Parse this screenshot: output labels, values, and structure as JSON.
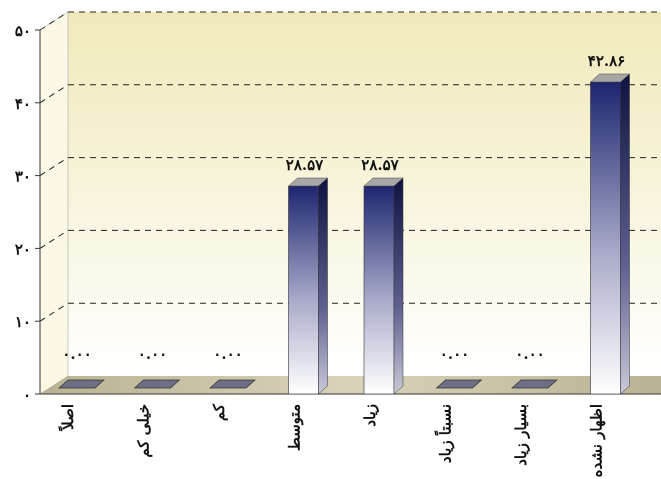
{
  "chart_data": {
    "type": "bar",
    "title": "",
    "xlabel": "",
    "ylabel": "",
    "categories": [
      "اصلاً",
      "خیلی کم",
      "کم",
      "متوسط",
      "زیاد",
      "نسبتاً زیاد",
      "بسیار زیاد",
      "اظهار نشده"
    ],
    "values": [
      0.0,
      0.0,
      0.0,
      28.57,
      28.57,
      0.0,
      0.0,
      42.86
    ],
    "value_labels": [
      "۰.۰۰",
      "۰.۰۰",
      "۰.۰۰",
      "۲۸.۵۷",
      "۲۸.۵۷",
      "۰.۰۰",
      "۰.۰۰",
      "۴۲.۸۶"
    ],
    "y_ticks": [
      0,
      10,
      20,
      30,
      40,
      50
    ],
    "y_tick_labels": [
      "۰",
      "۱۰",
      "۲۰",
      "۳۰",
      "۴۰",
      "۵۰"
    ],
    "ylim": [
      0,
      50
    ],
    "grid": true,
    "legend": "none",
    "colors": {
      "bar_top": "#1e2570",
      "bar_bottom": "#ffffff",
      "wall_top": "#f0eaba",
      "wall_bottom": "#ffffff",
      "floor": "#c9c3a6",
      "grid": "#222222"
    }
  }
}
